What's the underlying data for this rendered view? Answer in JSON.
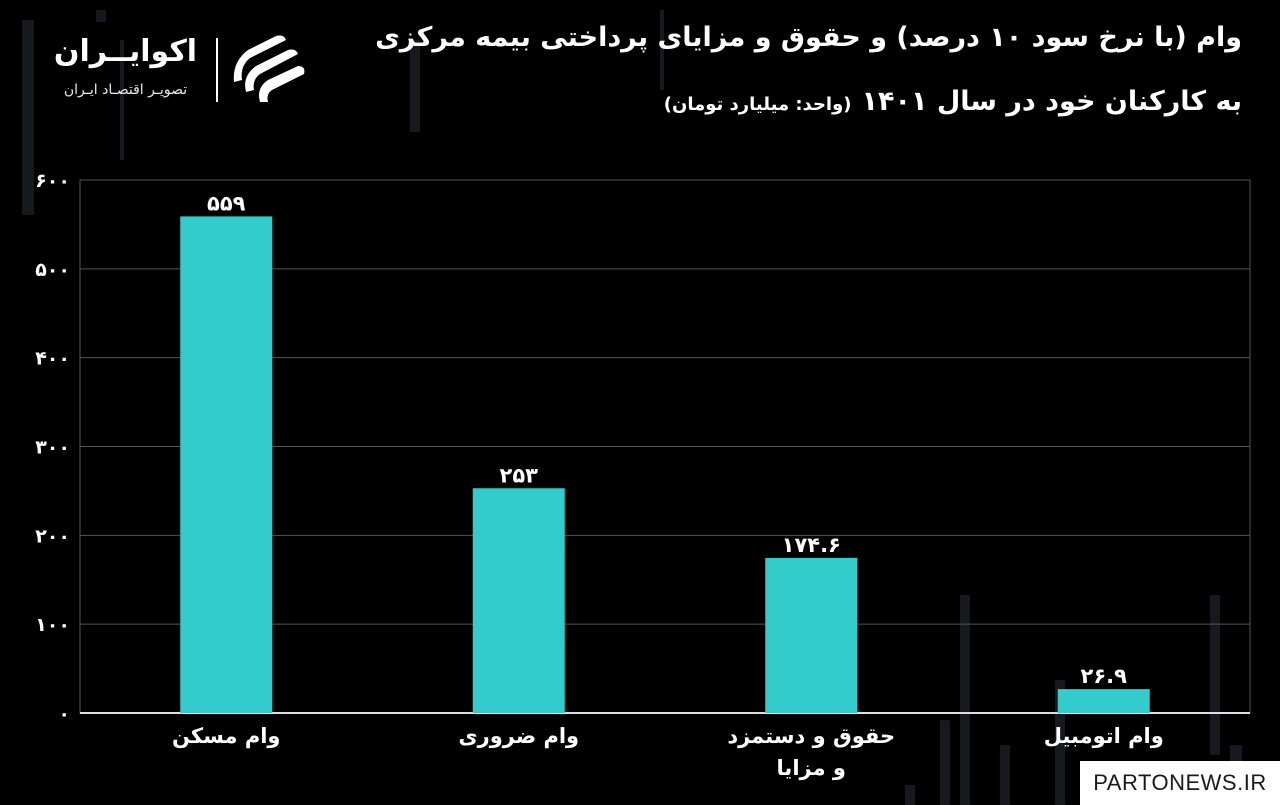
{
  "header": {
    "title_line1": "وام (با نرخ سود ۱۰ درصد) و حقوق و مزایای پرداختی بیمه مرکزی",
    "title_line2": "به کارکنان خود در سال ۱۴۰۱",
    "unit": "(واحد: میلیارد تومان)"
  },
  "logo": {
    "name": "اکوایــران",
    "tagline": "تصویـر اقتصـاد ایـران",
    "icon": "ecoiran-stripes-icon"
  },
  "watermark": "PARTONEWS.IR",
  "colors": {
    "bar": "#33CCCC",
    "background": "#000000",
    "grid": "#555555",
    "text": "#ffffff"
  },
  "chart_data": {
    "type": "bar",
    "categories": [
      [
        "وام مسکن"
      ],
      [
        "وام ضروری"
      ],
      [
        "حقوق و دستمزد",
        "و مزایا"
      ],
      [
        "وام اتومبیل"
      ]
    ],
    "values": [
      559,
      253,
      174.6,
      26.9
    ],
    "value_labels": [
      "۵۵۹",
      "۲۵۳",
      "۱۷۴.۶",
      "۲۶.۹"
    ],
    "yticks": [
      0,
      100,
      200,
      300,
      400,
      500,
      600
    ],
    "ytick_labels": [
      "۰",
      "۱۰۰",
      "۲۰۰",
      "۳۰۰",
      "۴۰۰",
      "۵۰۰",
      "۶۰۰"
    ],
    "ylim": [
      0,
      600
    ],
    "grid": true,
    "legend": "none"
  }
}
